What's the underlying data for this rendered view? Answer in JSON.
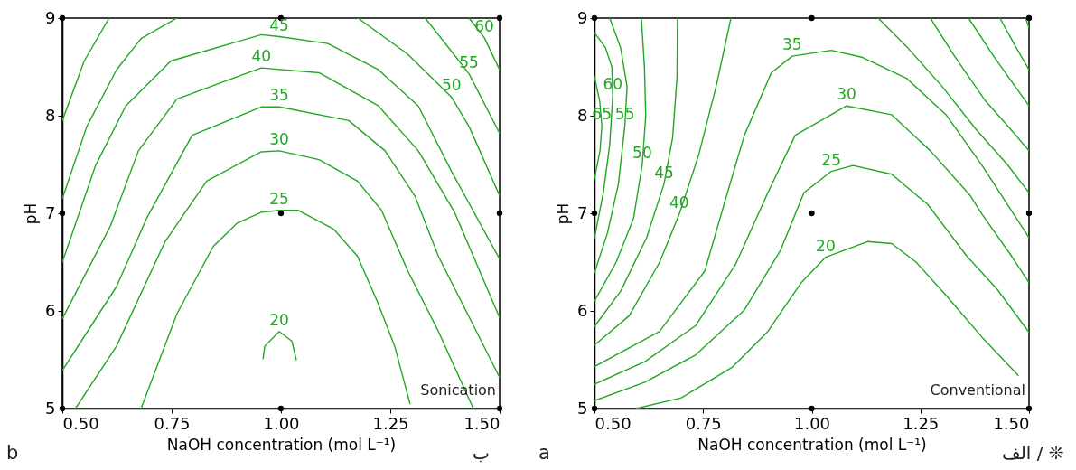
{
  "chart_data": [
    {
      "type": "line",
      "xlabel": "NaOH concentration (mol L⁻¹)",
      "ylabel": "pH",
      "xlim": [
        0.5,
        1.5
      ],
      "xticks": [
        {
          "value": 0.5,
          "label": "0.50"
        },
        {
          "value": 0.75,
          "label": "0.75"
        },
        {
          "value": 1,
          "label": "1.00"
        },
        {
          "value": 1.25,
          "label": "1.25"
        },
        {
          "value": 1.5,
          "label": "1.50"
        }
      ],
      "ylim": [
        5,
        9
      ],
      "yticks": [
        5,
        6,
        7,
        8,
        9
      ],
      "annotations": [
        "Sonication",
        "b",
        "ب"
      ],
      "series": [
        {
          "name": "20",
          "color": "#22a722",
          "x": [
            0.959,
            0.963,
            0.996,
            1.025,
            1.035
          ],
          "values": [
            5.51,
            5.64,
            5.79,
            5.69,
            5.5
          ]
        },
        {
          "name": "25",
          "color": "#22a722",
          "x": [
            0.68,
            0.762,
            0.845,
            0.9,
            0.955,
            0.996,
            1.04,
            1.12,
            1.175,
            1.22,
            1.26,
            1.295
          ],
          "values": [
            5.0,
            5.97,
            6.66,
            6.9,
            7.01,
            7.03,
            7.03,
            6.84,
            6.56,
            6.1,
            5.64,
            5.05
          ]
        },
        {
          "name": "30",
          "color": "#22a722",
          "x": [
            0.53,
            0.624,
            0.735,
            0.83,
            0.955,
            0.996,
            1.087,
            1.175,
            1.23,
            1.29,
            1.36,
            1.44
          ],
          "values": [
            5.0,
            5.64,
            6.71,
            7.33,
            7.63,
            7.64,
            7.55,
            7.33,
            7.03,
            6.41,
            5.79,
            5.0
          ]
        },
        {
          "name": "35",
          "color": "#22a722",
          "x": [
            0.5,
            0.624,
            0.694,
            0.797,
            0.955,
            0.996,
            1.155,
            1.238,
            1.306,
            1.36,
            1.43,
            1.5
          ],
          "values": [
            5.39,
            6.25,
            6.96,
            7.8,
            8.09,
            8.09,
            7.95,
            7.64,
            7.18,
            6.56,
            5.94,
            5.32
          ]
        },
        {
          "name": "40",
          "color": "#22a722",
          "x": [
            0.5,
            0.61,
            0.674,
            0.762,
            0.955,
            1.087,
            1.223,
            1.314,
            1.397,
            1.5
          ],
          "values": [
            5.92,
            6.87,
            7.64,
            8.17,
            8.49,
            8.44,
            8.1,
            7.64,
            7.01,
            5.93
          ]
        },
        {
          "name": "45",
          "color": "#22a722",
          "x": [
            0.5,
            0.576,
            0.645,
            0.748,
            0.955,
            0.996,
            1.107,
            1.223,
            1.314,
            1.39,
            1.5
          ],
          "values": [
            6.5,
            7.49,
            8.1,
            8.56,
            8.83,
            8.81,
            8.74,
            8.47,
            8.1,
            7.43,
            6.53
          ]
        },
        {
          "color": "#22a722",
          "x": [
            0.5,
            0.556,
            0.624,
            0.68,
            0.762
          ],
          "values": [
            7.15,
            7.89,
            8.47,
            8.79,
            9.0
          ]
        },
        {
          "name": "50",
          "color": "#22a722",
          "x": [
            1.176,
            1.29,
            1.39,
            1.43,
            1.5
          ],
          "values": [
            9.0,
            8.63,
            8.19,
            7.89,
            7.18
          ]
        },
        {
          "color": "#22a722",
          "x": [
            0.5,
            0.55,
            0.607
          ],
          "values": [
            7.95,
            8.56,
            9.0
          ]
        },
        {
          "name": "55",
          "color": "#22a722",
          "x": [
            1.33,
            1.43,
            1.5
          ],
          "values": [
            9.0,
            8.43,
            7.82
          ]
        },
        {
          "name": "60",
          "color": "#22a722",
          "x": [
            1.43,
            1.465,
            1.5
          ],
          "values": [
            9.0,
            8.8,
            8.47
          ]
        },
        {
          "type": "scatter",
          "color": "#000000",
          "x": [
            0.5,
            0.5,
            0.5,
            1,
            1,
            1,
            1.5,
            1.5,
            1.5
          ],
          "values": [
            5,
            7,
            9,
            5,
            7,
            9,
            5,
            7,
            9
          ]
        }
      ]
    },
    {
      "type": "line",
      "xlabel": "NaOH concentration (mol L⁻¹)",
      "ylabel": "pH",
      "xlim": [
        0.5,
        1.5
      ],
      "xticks": [
        {
          "value": 0.5,
          "label": "0.50"
        },
        {
          "value": 0.75,
          "label": "0.75"
        },
        {
          "value": 1,
          "label": "1.00"
        },
        {
          "value": 1.25,
          "label": "1.25"
        },
        {
          "value": 1.5,
          "label": "1.50"
        }
      ],
      "ylim": [
        5,
        9
      ],
      "yticks": [
        5,
        6,
        7,
        8,
        9
      ],
      "annotations": [
        "Conventional",
        "a",
        "الف / ❊"
      ],
      "series": [
        {
          "name": "20",
          "color": "#22a722",
          "x": [
            0.596,
            0.7,
            0.816,
            0.899,
            0.976,
            1.032,
            1.128,
            1.184,
            1.24,
            1.309,
            1.392,
            1.475
          ],
          "values": [
            5.0,
            5.11,
            5.42,
            5.79,
            6.29,
            6.55,
            6.71,
            6.69,
            6.5,
            6.16,
            5.73,
            5.34
          ]
        },
        {
          "name": "25",
          "color": "#22a722",
          "x": [
            0.5,
            0.616,
            0.733,
            0.845,
            0.928,
            0.982,
            1.045,
            1.095,
            1.184,
            1.267,
            1.357,
            1.427,
            1.5
          ],
          "values": [
            5.08,
            5.27,
            5.55,
            6.01,
            6.62,
            7.21,
            7.43,
            7.49,
            7.4,
            7.09,
            6.56,
            6.22,
            5.78
          ]
        },
        {
          "name": "30",
          "color": "#22a722",
          "x": [
            0.5,
            0.616,
            0.733,
            0.824,
            0.899,
            0.962,
            1.08,
            1.184,
            1.273,
            1.365,
            1.392,
            1.46,
            1.5
          ],
          "values": [
            5.25,
            5.48,
            5.85,
            6.47,
            7.21,
            7.8,
            8.1,
            8.01,
            7.64,
            7.18,
            6.99,
            6.56,
            6.29
          ]
        },
        {
          "name": "35",
          "color": "#22a722",
          "x": [
            0.5,
            0.65,
            0.754,
            0.804,
            0.845,
            0.907,
            0.955,
            1.045,
            1.115,
            1.219,
            1.309,
            1.392,
            1.5
          ],
          "values": [
            5.43,
            5.79,
            6.41,
            7.18,
            7.8,
            8.44,
            8.61,
            8.67,
            8.6,
            8.38,
            8.01,
            7.49,
            6.75
          ]
        },
        {
          "name": "40",
          "color": "#22a722",
          "x": [
            0.5,
            0.58,
            0.65,
            0.695,
            0.74,
            0.78,
            0.814
          ],
          "values": [
            5.65,
            5.95,
            6.5,
            6.99,
            7.6,
            8.3,
            9.0
          ]
        },
        {
          "name": "45",
          "color": "#22a722",
          "x": [
            0.5,
            0.56,
            0.62,
            0.66,
            0.68,
            0.69,
            0.691
          ],
          "values": [
            5.84,
            6.2,
            6.75,
            7.3,
            7.78,
            8.4,
            9.0
          ]
        },
        {
          "name": "50",
          "color": "#22a722",
          "x": [
            0.5,
            0.55,
            0.59,
            0.61,
            0.618,
            0.615,
            0.608
          ],
          "values": [
            6.1,
            6.5,
            6.95,
            7.5,
            8.0,
            8.5,
            9.0
          ]
        },
        {
          "name": "55",
          "color": "#22a722",
          "x": [
            0.5,
            0.53,
            0.555,
            0.57,
            0.575,
            0.56,
            0.535
          ],
          "values": [
            6.39,
            6.8,
            7.3,
            7.9,
            8.3,
            8.7,
            9.0
          ]
        },
        {
          "name": "60",
          "color": "#22a722",
          "x": [
            0.5,
            0.52,
            0.535,
            0.542,
            0.54,
            0.525,
            0.5
          ],
          "values": [
            6.75,
            7.2,
            7.7,
            8.2,
            8.5,
            8.7,
            8.85
          ]
        },
        {
          "name": "65",
          "color": "#22a722",
          "x": [
            0.5,
            0.513,
            0.517,
            0.512,
            0.5
          ],
          "values": [
            7.35,
            7.65,
            7.9,
            8.15,
            8.4
          ]
        },
        {
          "color": "#22a722",
          "x": [
            1.153,
            1.22,
            1.3,
            1.38,
            1.45,
            1.5
          ],
          "values": [
            9.0,
            8.7,
            8.3,
            7.85,
            7.5,
            7.21
          ]
        },
        {
          "color": "#22a722",
          "x": [
            1.273,
            1.33,
            1.4,
            1.45,
            1.5
          ],
          "values": [
            9.0,
            8.6,
            8.15,
            7.9,
            7.64
          ]
        },
        {
          "color": "#22a722",
          "x": [
            1.361,
            1.42,
            1.46,
            1.5
          ],
          "values": [
            9.0,
            8.6,
            8.35,
            8.1
          ]
        },
        {
          "color": "#22a722",
          "x": [
            1.433,
            1.47,
            1.5
          ],
          "values": [
            9.0,
            8.7,
            8.47
          ]
        },
        {
          "color": "#22a722",
          "x": [
            1.492,
            1.5
          ],
          "values": [
            9.0,
            8.9
          ]
        },
        {
          "type": "scatter",
          "color": "#000000",
          "x": [
            0.5,
            0.5,
            0.5,
            1,
            1,
            1,
            1.5,
            1.5,
            1.5
          ],
          "values": [
            5,
            7,
            9,
            5,
            7,
            9,
            5,
            7,
            9
          ]
        }
      ]
    }
  ]
}
